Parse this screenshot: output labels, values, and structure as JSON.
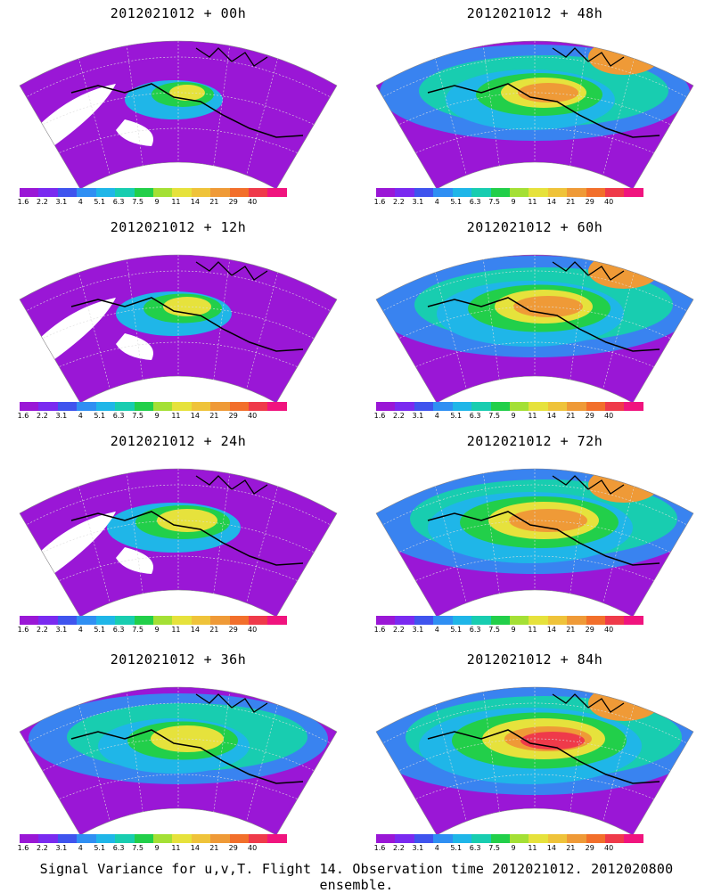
{
  "panels": [
    {
      "title": "2012021012 + 00h"
    },
    {
      "title": "2012021012 + 48h"
    },
    {
      "title": "2012021012 + 12h"
    },
    {
      "title": "2012021012 + 60h"
    },
    {
      "title": "2012021012 + 24h"
    },
    {
      "title": "2012021012 + 72h"
    },
    {
      "title": "2012021012 + 36h"
    },
    {
      "title": "2012021012 + 84h"
    }
  ],
  "colorbar": {
    "colors": [
      "#9a17d6",
      "#7a2af0",
      "#3f54ee",
      "#2f8ff3",
      "#1fb6e8",
      "#18cdb0",
      "#22cf4a",
      "#a4e035",
      "#e6e23c",
      "#efc33a",
      "#ef9a37",
      "#f26f2b",
      "#ef3a4a",
      "#f0147e"
    ],
    "labels": [
      "1.6",
      "2.2",
      "3.1",
      "4",
      "5.1",
      "6.3",
      "7.5",
      "9",
      "11",
      "14",
      "21",
      "29",
      "40"
    ]
  },
  "caption": "Signal Variance for u,v,T. Flight 14. Observation time 2012021012. 2012020800 ensemble."
}
